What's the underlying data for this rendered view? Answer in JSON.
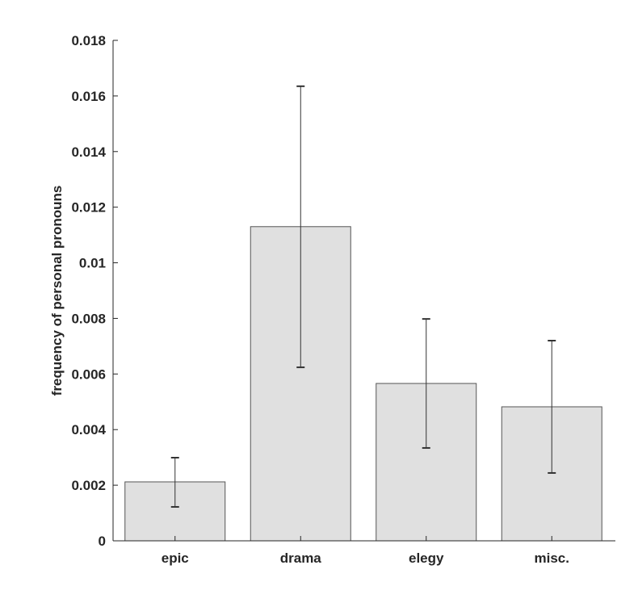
{
  "chart_data": {
    "type": "bar",
    "title": "",
    "xlabel": "",
    "ylabel": "frequency of personal pronouns",
    "categories": [
      "epic",
      "drama",
      "elegy",
      "misc."
    ],
    "values": [
      0.00212,
      0.0113,
      0.00566,
      0.00482
    ],
    "error_bars": {
      "upper": [
        0.00299,
        0.01635,
        0.00798,
        0.0072
      ],
      "lower": [
        0.00122,
        0.00624,
        0.00334,
        0.00244
      ]
    },
    "ylim": [
      0,
      0.018
    ],
    "yticks": [
      "0",
      "0.002",
      "0.004",
      "0.006",
      "0.008",
      "0.01",
      "0.012",
      "0.014",
      "0.016",
      "0.018"
    ],
    "ytick_values": [
      0,
      0.002,
      0.004,
      0.006,
      0.008,
      0.01,
      0.012,
      0.014,
      0.016,
      0.018
    ],
    "grid": false,
    "legend": null,
    "colors": {
      "bar_fill": "#e0e0e0",
      "bar_edge": "#555555",
      "axis": "#262626",
      "error": "#333333"
    }
  }
}
